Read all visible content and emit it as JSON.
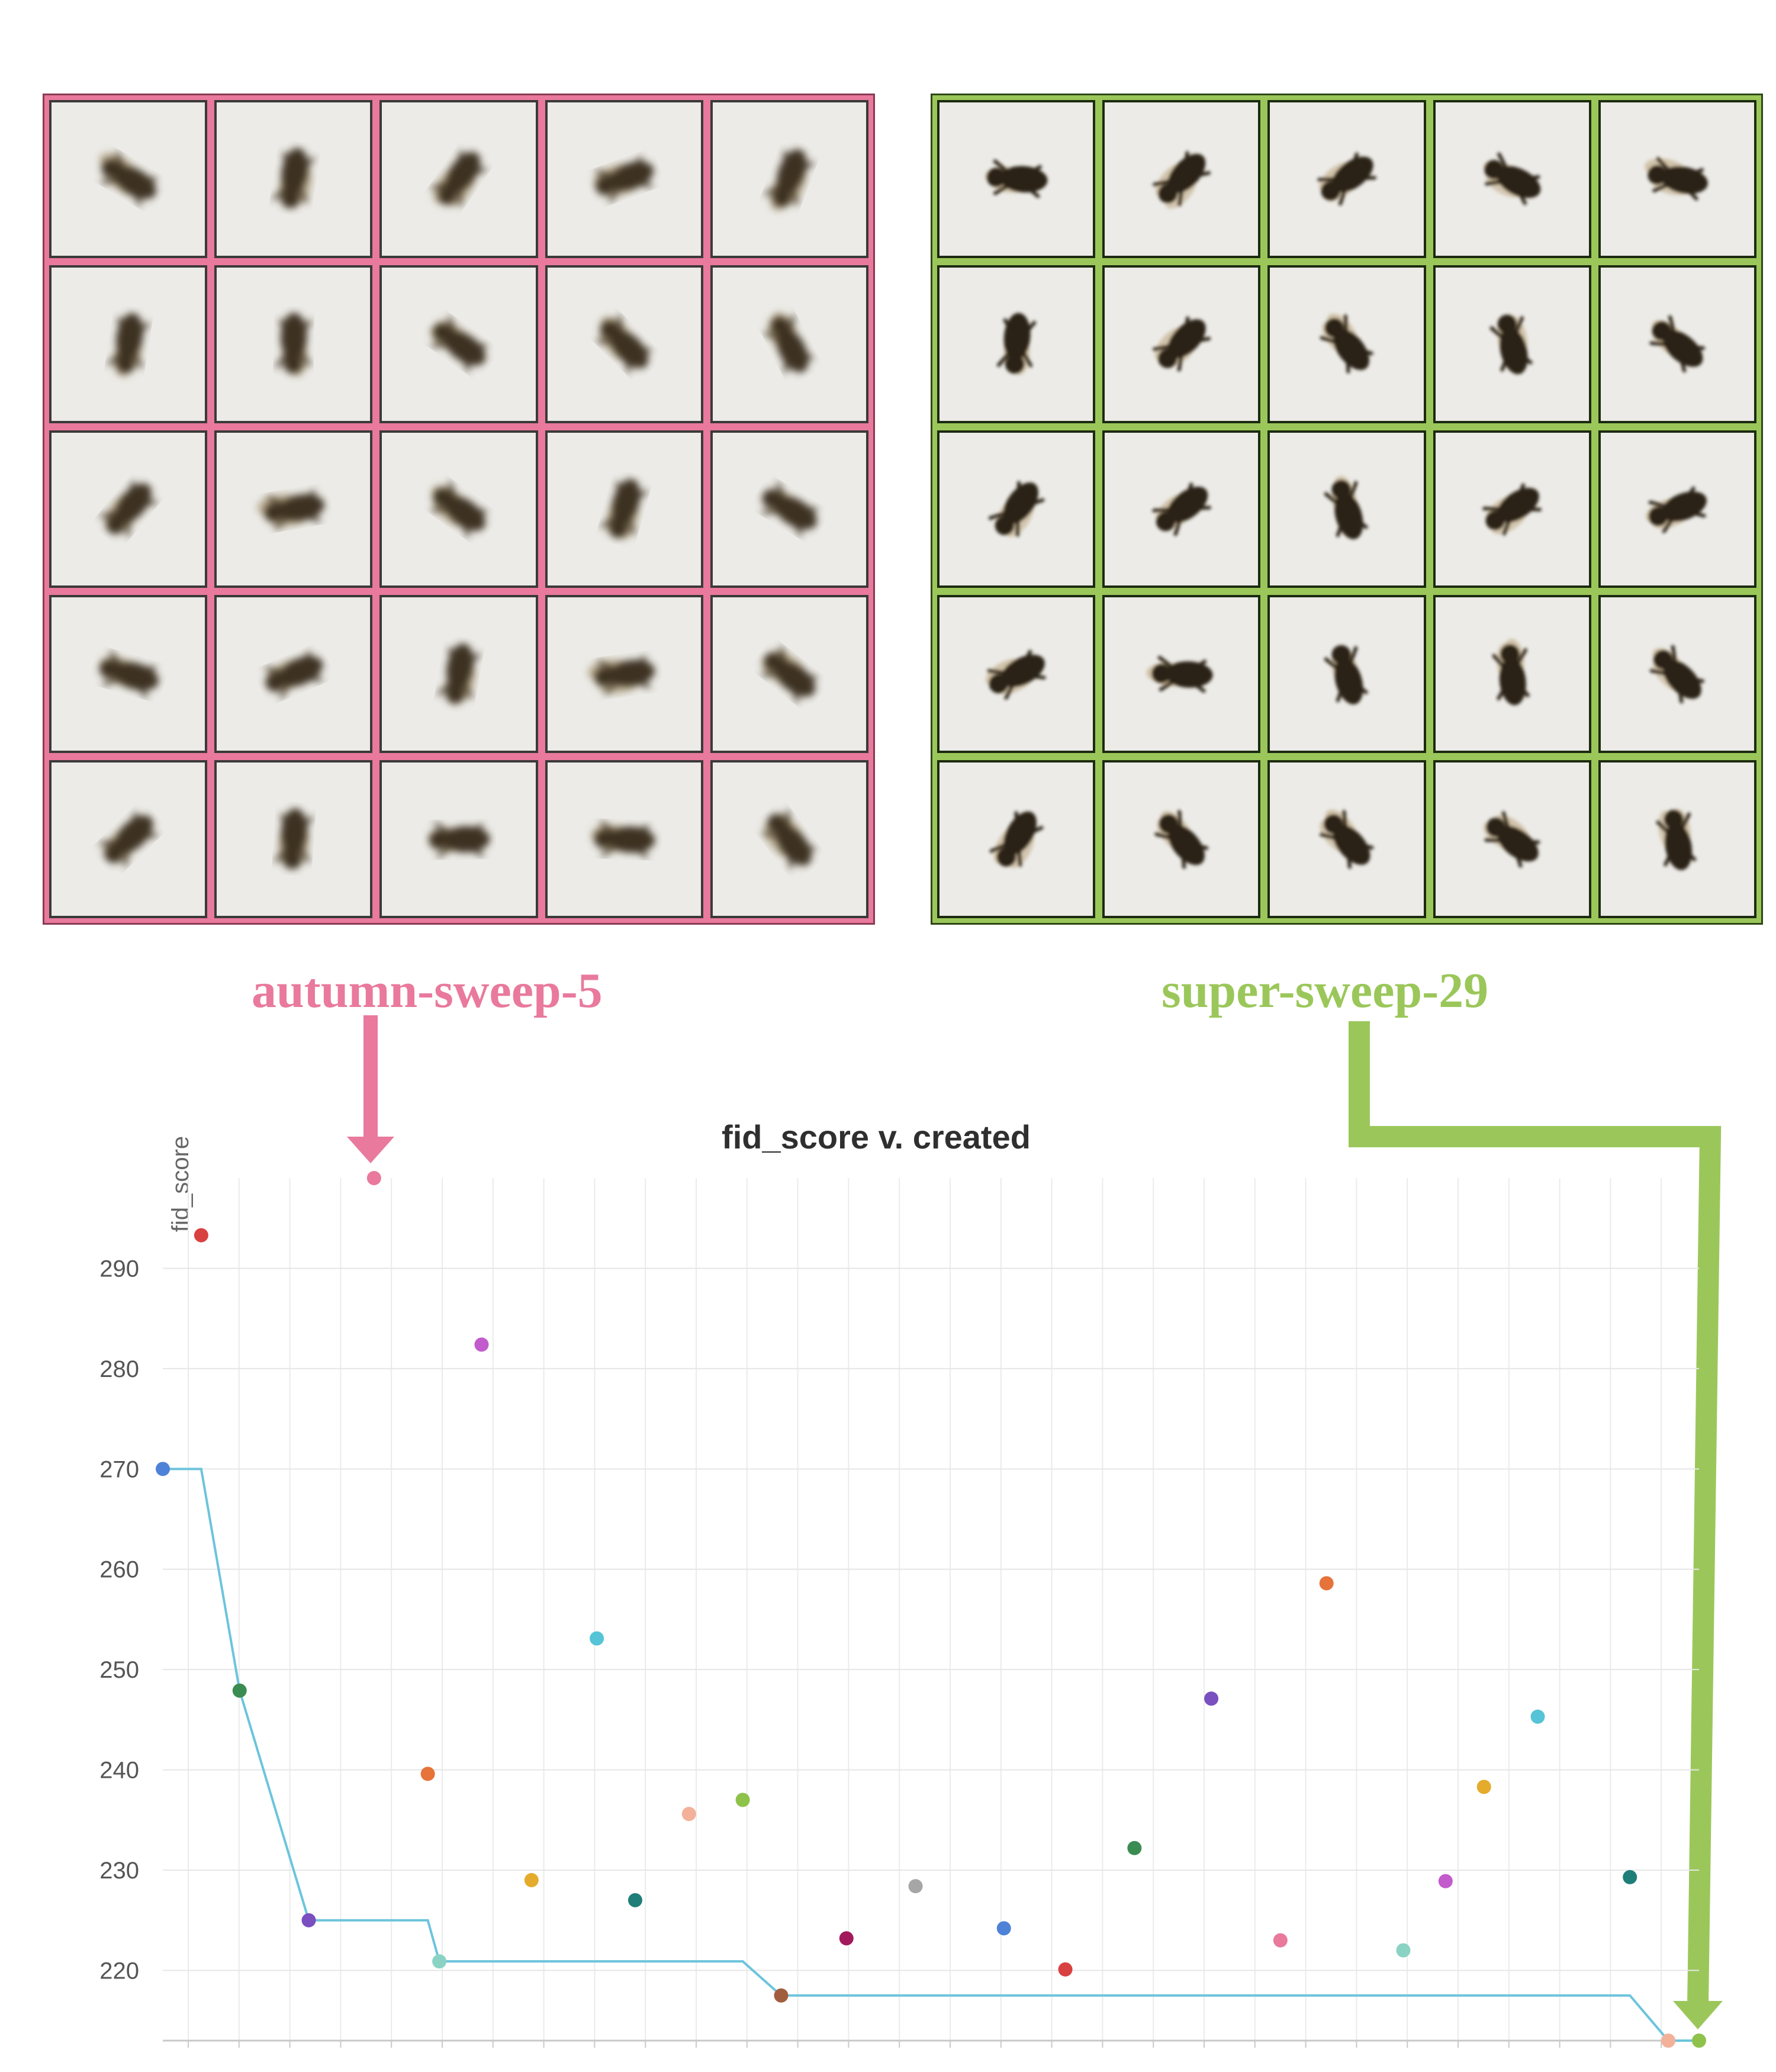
{
  "runs": {
    "left": {
      "name": "autumn-sweep-5",
      "color": "#e9799d"
    },
    "right": {
      "name": "super-sweep-29",
      "color": "#9bc75a"
    }
  },
  "sample_icons": "bee-image",
  "chart_data": {
    "type": "scatter",
    "title": "fid_score v. created",
    "xlabel": "",
    "ylabel": "fid_score",
    "ylim": [
      213,
      299
    ],
    "yticks": [
      220,
      230,
      240,
      250,
      260,
      270,
      280,
      290
    ],
    "grid": true,
    "x_units": "run order (0–40)",
    "points": [
      {
        "x": 0,
        "y": 270,
        "color": "#4e82d8"
      },
      {
        "x": 1,
        "y": 293.3,
        "color": "#d94040"
      },
      {
        "x": 2,
        "y": 247.9,
        "color": "#3b8c52"
      },
      {
        "x": 3.8,
        "y": 225,
        "color": "#7a4fbf"
      },
      {
        "x": 5.5,
        "y": 299,
        "color": "#e9799d"
      },
      {
        "x": 6.9,
        "y": 239.6,
        "color": "#e6733a"
      },
      {
        "x": 7.2,
        "y": 220.9,
        "color": "#8ad3c4"
      },
      {
        "x": 8.3,
        "y": 282.4,
        "color": "#c25bcc"
      },
      {
        "x": 9.6,
        "y": 229,
        "color": "#e5ab2c"
      },
      {
        "x": 11.3,
        "y": 253.1,
        "color": "#55c4d6"
      },
      {
        "x": 12.3,
        "y": 227,
        "color": "#1f7e78"
      },
      {
        "x": 13.7,
        "y": 235.6,
        "color": "#f3b19a"
      },
      {
        "x": 15.1,
        "y": 237,
        "color": "#8ec24a"
      },
      {
        "x": 16.1,
        "y": 217.5,
        "color": "#a15e3e"
      },
      {
        "x": 17.8,
        "y": 223.2,
        "color": "#a21a5c"
      },
      {
        "x": 19.6,
        "y": 228.4,
        "color": "#a6a6a6"
      },
      {
        "x": 21.9,
        "y": 224.2,
        "color": "#4e82d8"
      },
      {
        "x": 23.5,
        "y": 220.1,
        "color": "#d94040"
      },
      {
        "x": 25.3,
        "y": 232.2,
        "color": "#3b8c52"
      },
      {
        "x": 27.3,
        "y": 247.1,
        "color": "#7a4fbf"
      },
      {
        "x": 29.1,
        "y": 223,
        "color": "#e9799d"
      },
      {
        "x": 30.3,
        "y": 258.6,
        "color": "#e6733a"
      },
      {
        "x": 32.3,
        "y": 222,
        "color": "#8ad3c4"
      },
      {
        "x": 33.4,
        "y": 228.9,
        "color": "#c25bcc"
      },
      {
        "x": 34.4,
        "y": 238.3,
        "color": "#e5ab2c"
      },
      {
        "x": 35.8,
        "y": 245.3,
        "color": "#55c4d6"
      },
      {
        "x": 38.2,
        "y": 229.3,
        "color": "#1f7e78"
      },
      {
        "x": 39.2,
        "y": 213,
        "color": "#f3b19a"
      },
      {
        "x": 40,
        "y": 213,
        "color": "#8ec24a"
      }
    ],
    "best_so_far_line": {
      "color": "#6cc4dc",
      "x": [
        0,
        1,
        2,
        3.8,
        6.9,
        7.2,
        15.1,
        16.1,
        38.2,
        39.2,
        40
      ],
      "y": [
        270,
        270,
        247.9,
        225,
        225,
        220.9,
        220.9,
        217.5,
        217.5,
        213,
        213
      ]
    }
  }
}
